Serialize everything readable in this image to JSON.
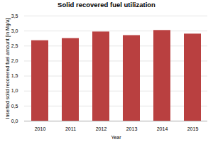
{
  "chart_data": {
    "type": "bar",
    "title": "Solid recovered fuel utilization",
    "xlabel": "Year",
    "ylabel": "Inserted solid recovered fuel amount [in Mg/a]",
    "categories": [
      "2010",
      "2011",
      "2012",
      "2013",
      "2014",
      "2015"
    ],
    "values": [
      2.68,
      2.75,
      2.97,
      2.85,
      3.02,
      2.9
    ],
    "color": "#b94040",
    "ylim": [
      0,
      3.5
    ],
    "yticks": [
      {
        "value": 0.0,
        "label": "0,0"
      },
      {
        "value": 0.5,
        "label": "0,5"
      },
      {
        "value": 1.0,
        "label": "1,0"
      },
      {
        "value": 1.5,
        "label": "1,5"
      },
      {
        "value": 2.0,
        "label": "2,0"
      },
      {
        "value": 2.5,
        "label": "2,5"
      },
      {
        "value": 3.0,
        "label": "3,0"
      },
      {
        "value": 3.5,
        "label": "3,5"
      }
    ],
    "grid": true
  }
}
